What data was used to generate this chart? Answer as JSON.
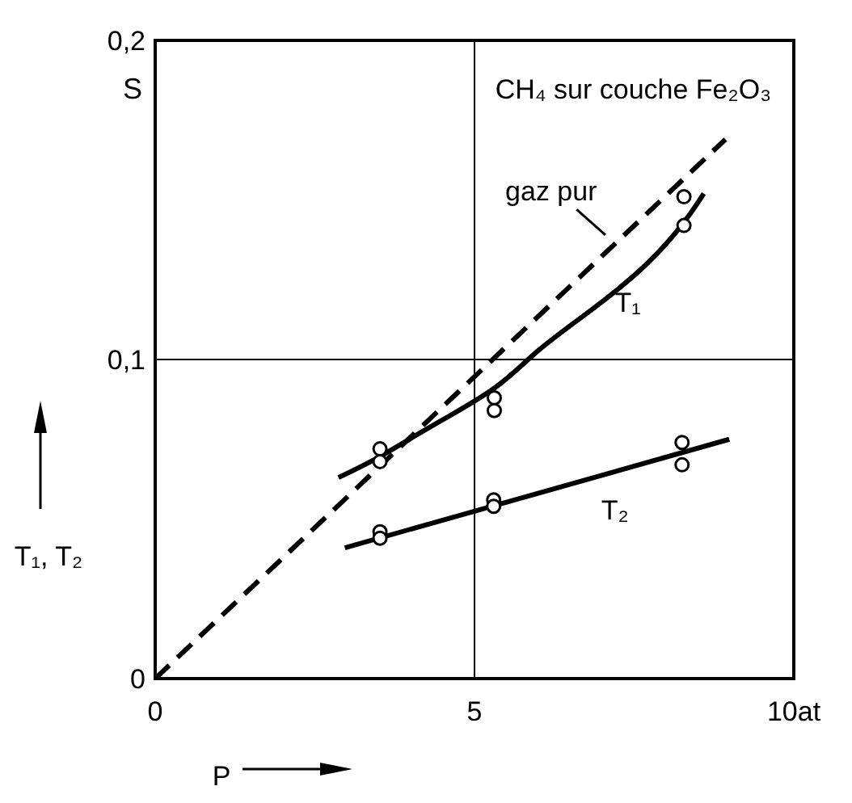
{
  "chart_data": {
    "type": "line",
    "xlabel": "P",
    "ylabel": "T₁, T₂",
    "subtitle": "S",
    "xlim": [
      0,
      10
    ],
    "ylim": [
      0,
      0.2
    ],
    "xticks": [
      0,
      5,
      {
        "value": 10,
        "label": "10at"
      }
    ],
    "yticks": [
      0,
      {
        "value": 0.1,
        "label": "0,1"
      },
      {
        "value": 0.2,
        "label": "0,2"
      }
    ],
    "grid": true,
    "series": [
      {
        "line_style": "dashed",
        "marker": "none",
        "color": "#000000",
        "x": [
          0,
          8.93
        ],
        "values": [
          0,
          0.169
        ]
      },
      {
        "line_style": "solid",
        "marker": "none",
        "color": "#000000",
        "x": [
          2.87,
          3.52,
          4.32,
          5.31,
          6.01,
          6.86,
          7.7,
          8.28,
          8.59
        ],
        "values": [
          0.063,
          0.0696,
          0.079,
          0.091,
          0.103,
          0.116,
          0.13,
          0.143,
          0.152
        ]
      },
      {
        "line_style": "solid",
        "marker": "none",
        "color": "#000000",
        "x": [
          2.97,
          8.99
        ],
        "values": [
          0.041,
          0.075
        ]
      },
      {
        "type": "scatter",
        "marker": "circle",
        "color": "#000000",
        "x": [
          3.52,
          3.52,
          5.31,
          5.31,
          8.28,
          8.28
        ],
        "values": [
          0.072,
          0.068,
          0.088,
          0.084,
          0.151,
          0.142
        ]
      },
      {
        "type": "scatter",
        "marker": "circle",
        "color": "#000000",
        "x": [
          3.52,
          3.52,
          5.3,
          5.3,
          8.25,
          8.25
        ],
        "values": [
          0.046,
          0.044,
          0.056,
          0.054,
          0.074,
          0.067
        ]
      }
    ],
    "annotations": [
      "CH₄ sur couche Fe₂O₃",
      "gaz pur",
      "T₁",
      "T₂"
    ]
  }
}
